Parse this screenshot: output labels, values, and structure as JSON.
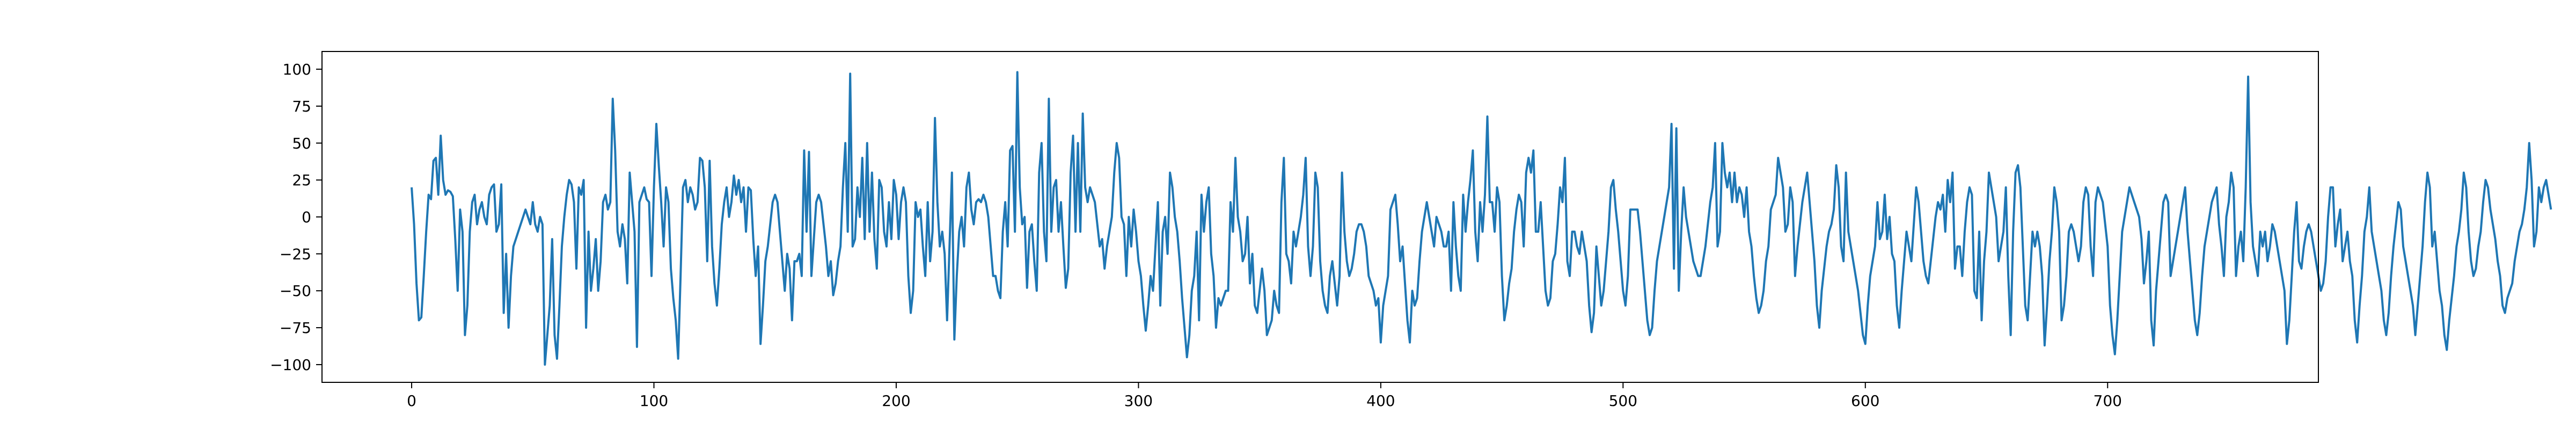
{
  "chart_data": {
    "type": "line",
    "title": "",
    "xlabel": "",
    "ylabel": "",
    "grid": false,
    "xlim": [
      -37,
      787
    ],
    "ylim": [
      -112,
      112
    ],
    "x_ticks": [
      0,
      100,
      200,
      300,
      400,
      500,
      600,
      700
    ],
    "y_ticks": [
      -100,
      -75,
      -50,
      -25,
      0,
      25,
      50,
      75,
      100
    ],
    "x_tick_labels": [
      "0",
      "100",
      "200",
      "300",
      "400",
      "500",
      "600",
      "700"
    ],
    "y_tick_labels": [
      "−100",
      "−75",
      "−50",
      "−25",
      "0",
      "25",
      "50",
      "75",
      "100"
    ],
    "series": [
      {
        "color": "#1f77b4",
        "x_start": 0,
        "x_step": 1,
        "values": [
          20,
          -5,
          -45,
          -70,
          -68,
          -40,
          -10,
          15,
          12,
          38,
          40,
          15,
          55,
          25,
          15,
          18,
          17,
          14,
          -15,
          -50,
          5,
          -10,
          -80,
          -60,
          -10,
          10,
          15,
          -5,
          5,
          10,
          0,
          -5,
          15,
          20,
          22,
          -10,
          -5,
          22,
          -65,
          -25,
          -75,
          -40,
          -20,
          -15,
          -10,
          -5,
          0,
          5,
          0,
          -5,
          10,
          -5,
          -10,
          0,
          -5,
          -100,
          -80,
          -60,
          -15,
          -80,
          -96,
          -60,
          -20,
          0,
          15,
          25,
          22,
          10,
          -35,
          20,
          15,
          25,
          -75,
          -10,
          -50,
          -35,
          -15,
          -50,
          -30,
          10,
          15,
          5,
          10,
          80,
          45,
          -10,
          -20,
          -5,
          -15,
          -45,
          30,
          10,
          -10,
          -88,
          10,
          15,
          20,
          12,
          10,
          -40,
          20,
          63,
          35,
          10,
          -20,
          20,
          10,
          -35,
          -55,
          -70,
          -96,
          -40,
          20,
          25,
          10,
          20,
          15,
          5,
          10,
          40,
          38,
          20,
          -30,
          38,
          -20,
          -45,
          -60,
          -35,
          -5,
          10,
          20,
          0,
          10,
          28,
          15,
          25,
          10,
          20,
          -10,
          20,
          18,
          -15,
          -40,
          -20,
          -86,
          -60,
          -30,
          -20,
          -5,
          10,
          15,
          10,
          -10,
          -30,
          -50,
          -25,
          -35,
          -70,
          -30,
          -30,
          -25,
          -40,
          45,
          -10,
          44,
          -40,
          -15,
          10,
          15,
          10,
          -5,
          -20,
          -40,
          -30,
          -53,
          -45,
          -30,
          -20,
          20,
          50,
          -10,
          97,
          -20,
          -15,
          20,
          0,
          40,
          -15,
          50,
          -10,
          30,
          -15,
          -35,
          25,
          20,
          -10,
          -20,
          10,
          -15,
          25,
          15,
          -15,
          10,
          20,
          10,
          -40,
          -65,
          -50,
          10,
          0,
          5,
          -20,
          -40,
          10,
          -30,
          -10,
          67,
          10,
          -20,
          -10,
          -25,
          -70,
          -20,
          30,
          -83,
          -40,
          -10,
          0,
          -20,
          20,
          30,
          5,
          -5,
          10,
          12,
          10,
          15,
          10,
          0,
          -20,
          -40,
          -40,
          -50,
          -55,
          -10,
          10,
          -20,
          45,
          48,
          -10,
          98,
          20,
          -5,
          0,
          -48,
          -10,
          -5,
          -30,
          -50,
          30,
          50,
          -10,
          -30,
          80,
          -10,
          20,
          25,
          -10,
          10,
          -20,
          -48,
          -35,
          30,
          55,
          -10,
          50,
          -10,
          70,
          20,
          10,
          20,
          15,
          10,
          -5,
          -20,
          -15,
          -35,
          -20,
          -10,
          0,
          30,
          50,
          40,
          0,
          -5,
          -40,
          0,
          -20,
          5,
          -10,
          -30,
          -40,
          -60,
          -77,
          -60,
          -40,
          -50,
          -20,
          10,
          -60,
          -10,
          0,
          -25,
          30,
          20,
          0,
          -10,
          -30,
          -55,
          -75,
          -95,
          -80,
          -50,
          -40,
          -10,
          -70,
          15,
          -10,
          10,
          20,
          -25,
          -40,
          -75,
          -55,
          -60,
          -55,
          -50,
          -50,
          10,
          -10,
          40,
          0,
          -10,
          -30,
          -25,
          0,
          -45,
          -25,
          -60,
          -65,
          -50,
          -35,
          -50,
          -80,
          -75,
          -70,
          -50,
          -60,
          -65,
          10,
          40,
          -25,
          -30,
          -45,
          -10,
          -20,
          -10,
          0,
          15,
          40,
          -20,
          -40,
          -20,
          30,
          20,
          -30,
          -50,
          -60,
          -65,
          -40,
          -30,
          -45,
          -60,
          -40,
          30,
          -10,
          -30,
          -40,
          -35,
          -25,
          -10,
          -5,
          -5,
          -10,
          -20,
          -40,
          -45,
          -50,
          -60,
          -55,
          -85,
          -60,
          -50,
          -40,
          5,
          10,
          15,
          -5,
          -30,
          -20,
          -45,
          -70,
          -85,
          -50,
          -60,
          -55,
          -30,
          -10,
          0,
          10,
          0,
          -10,
          -20,
          0,
          -5,
          -10,
          -20,
          -20,
          -10,
          -50,
          10,
          -20,
          -40,
          -50,
          15,
          -10,
          10,
          25,
          45,
          -10,
          -30,
          10,
          -10,
          15,
          68,
          10,
          10,
          -10,
          20,
          10,
          -40,
          -70,
          -60,
          -45,
          -35,
          -10,
          5,
          15,
          10,
          -20,
          30,
          40,
          30,
          45,
          -10,
          -10,
          10,
          -20,
          -50,
          -60,
          -55,
          -30,
          -25,
          -5,
          20,
          10,
          40,
          -30,
          -40,
          -10,
          -10,
          -20,
          -25,
          -10,
          -20,
          -30,
          -60,
          -78,
          -65,
          -20,
          -40,
          -60,
          -50,
          -30,
          -10,
          20,
          25,
          5,
          -10,
          -30,
          -50,
          -60,
          -40,
          5,
          5,
          5,
          5,
          -10,
          -30,
          -50,
          -70,
          -80,
          -75,
          -50,
          -30,
          -20,
          -10,
          0,
          10,
          20,
          63,
          -35,
          60,
          -50,
          -10,
          20,
          0,
          -10,
          -20,
          -30,
          -35,
          -40,
          -40,
          -30,
          -20,
          -5,
          10,
          20,
          50,
          -20,
          -10,
          50,
          30,
          20,
          30,
          10,
          30,
          10,
          20,
          15,
          0,
          20,
          -10,
          -20,
          -40,
          -55,
          -65,
          -60,
          -50,
          -30,
          -20,
          5,
          10,
          15,
          40,
          30,
          20,
          -10,
          -5,
          20,
          10,
          -40,
          -20,
          -5,
          10,
          20,
          30,
          10,
          -10,
          -30,
          -60,
          -75,
          -50,
          -35,
          -20,
          -10,
          -5,
          5,
          35,
          20,
          -20,
          -30,
          30,
          -10,
          -20,
          -30,
          -40,
          -50,
          -65,
          -80,
          -86,
          -60,
          -40,
          -30,
          -20,
          10,
          -15,
          -10,
          15,
          -15,
          0,
          -25,
          -30,
          -60,
          -75,
          -50,
          -30,
          -10,
          -20,
          -30,
          -5,
          20,
          10,
          -10,
          -30,
          -40,
          -45,
          -30,
          -15,
          0,
          10,
          5,
          15,
          -10,
          25,
          10,
          30,
          -35,
          -20,
          -20,
          -40,
          -10,
          10,
          20,
          15,
          -50,
          -55,
          -10,
          -70,
          -30,
          -10,
          30,
          20,
          10,
          0,
          -30,
          -20,
          -10,
          20,
          -40,
          -80,
          -10,
          30,
          35,
          20,
          -20,
          -60,
          -70,
          -40,
          -10,
          -20,
          -10,
          -20,
          -40,
          -87,
          -60,
          -30,
          -10,
          20,
          10,
          -10,
          -70,
          -60,
          -40,
          -10,
          -5,
          -10,
          -20,
          -30,
          -20,
          10,
          20,
          15,
          -20,
          -40,
          10,
          20,
          15,
          10,
          -5,
          -20,
          -60,
          -80,
          -93,
          -70,
          -40,
          -10,
          0,
          10,
          20,
          15,
          10,
          5,
          0,
          -15,
          -45,
          -30,
          -10,
          -70,
          -87,
          -50,
          -30,
          -10,
          10,
          15,
          10,
          -40,
          -30,
          -20,
          -10,
          0,
          10,
          20,
          -10,
          -30,
          -50,
          -70,
          -80,
          -65,
          -40,
          -20,
          -10,
          0,
          10,
          15,
          20,
          -5,
          -20,
          -40,
          0,
          10,
          30,
          20,
          -40,
          -20,
          -10,
          -30,
          20,
          95,
          10,
          -20,
          -30,
          -40,
          -10,
          -20,
          -10,
          -30,
          -20,
          -5,
          -10,
          -20,
          -30,
          -40,
          -50,
          -86,
          -70,
          -40,
          -10,
          10,
          -30,
          -35,
          -20,
          -10,
          -5,
          -10,
          -20,
          -30,
          -40,
          -50,
          -45,
          -30,
          0,
          20,
          20,
          -20,
          -5,
          5,
          -30,
          -20,
          -10,
          -30,
          -40,
          -70,
          -85,
          -60,
          -40,
          -10,
          0,
          20,
          -10,
          -20,
          -30,
          -40,
          -50,
          -70,
          -80,
          -65,
          -40,
          -20,
          -5,
          10,
          5,
          -20,
          -30,
          -40,
          -50,
          -60,
          -80,
          -60,
          -40,
          -20,
          10,
          30,
          20,
          -20,
          -10,
          -30,
          -50,
          -60,
          -80,
          -90,
          -70,
          -55,
          -40,
          -20,
          -10,
          5,
          30,
          20,
          -10,
          -30,
          -40,
          -35,
          -20,
          -10,
          10,
          25,
          20,
          5,
          -5,
          -15,
          -30,
          -40,
          -60,
          -65,
          -55,
          -50,
          -45,
          -30,
          -20,
          -10,
          -5,
          5,
          20,
          50,
          25,
          -20,
          -10,
          20,
          10,
          20,
          25,
          15,
          5
        ]
      }
    ]
  }
}
